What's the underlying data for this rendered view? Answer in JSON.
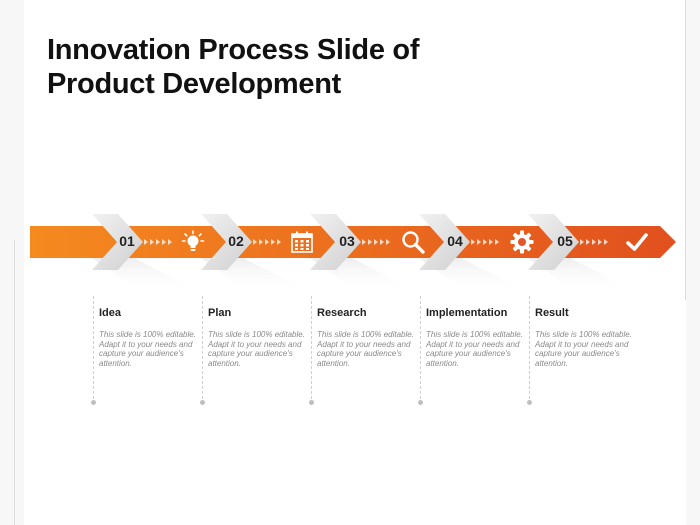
{
  "slide": {
    "title": "Innovation Process Slide of\nProduct Development"
  },
  "colors": {
    "orange_light": "#f58a1f",
    "orange_dark": "#e1501e",
    "chevron_grey": "#dcdcdc",
    "text_dark": "#222222",
    "text_grey": "#8a8a8a"
  },
  "steps": [
    {
      "number": "01",
      "title": "Idea",
      "icon": "lightbulb-icon",
      "description": "This slide is 100% editable. Adapt it to your needs and capture your audience's attention."
    },
    {
      "number": "02",
      "title": "Plan",
      "icon": "calendar-icon",
      "description": "This slide is 100% editable. Adapt it to your needs and capture your audience's attention."
    },
    {
      "number": "03",
      "title": "Research",
      "icon": "magnifier-icon",
      "description": "This slide is 100% editable. Adapt it to your needs and capture your audience's attention."
    },
    {
      "number": "04",
      "title": "Implementation",
      "icon": "gear-icon",
      "description": "This slide is 100% editable. Adapt it to your needs and capture your audience's attention."
    },
    {
      "number": "05",
      "title": "Result",
      "icon": "checkmark-icon",
      "description": "This slide is 100% editable. Adapt it to your needs and capture your audience's attention."
    }
  ]
}
